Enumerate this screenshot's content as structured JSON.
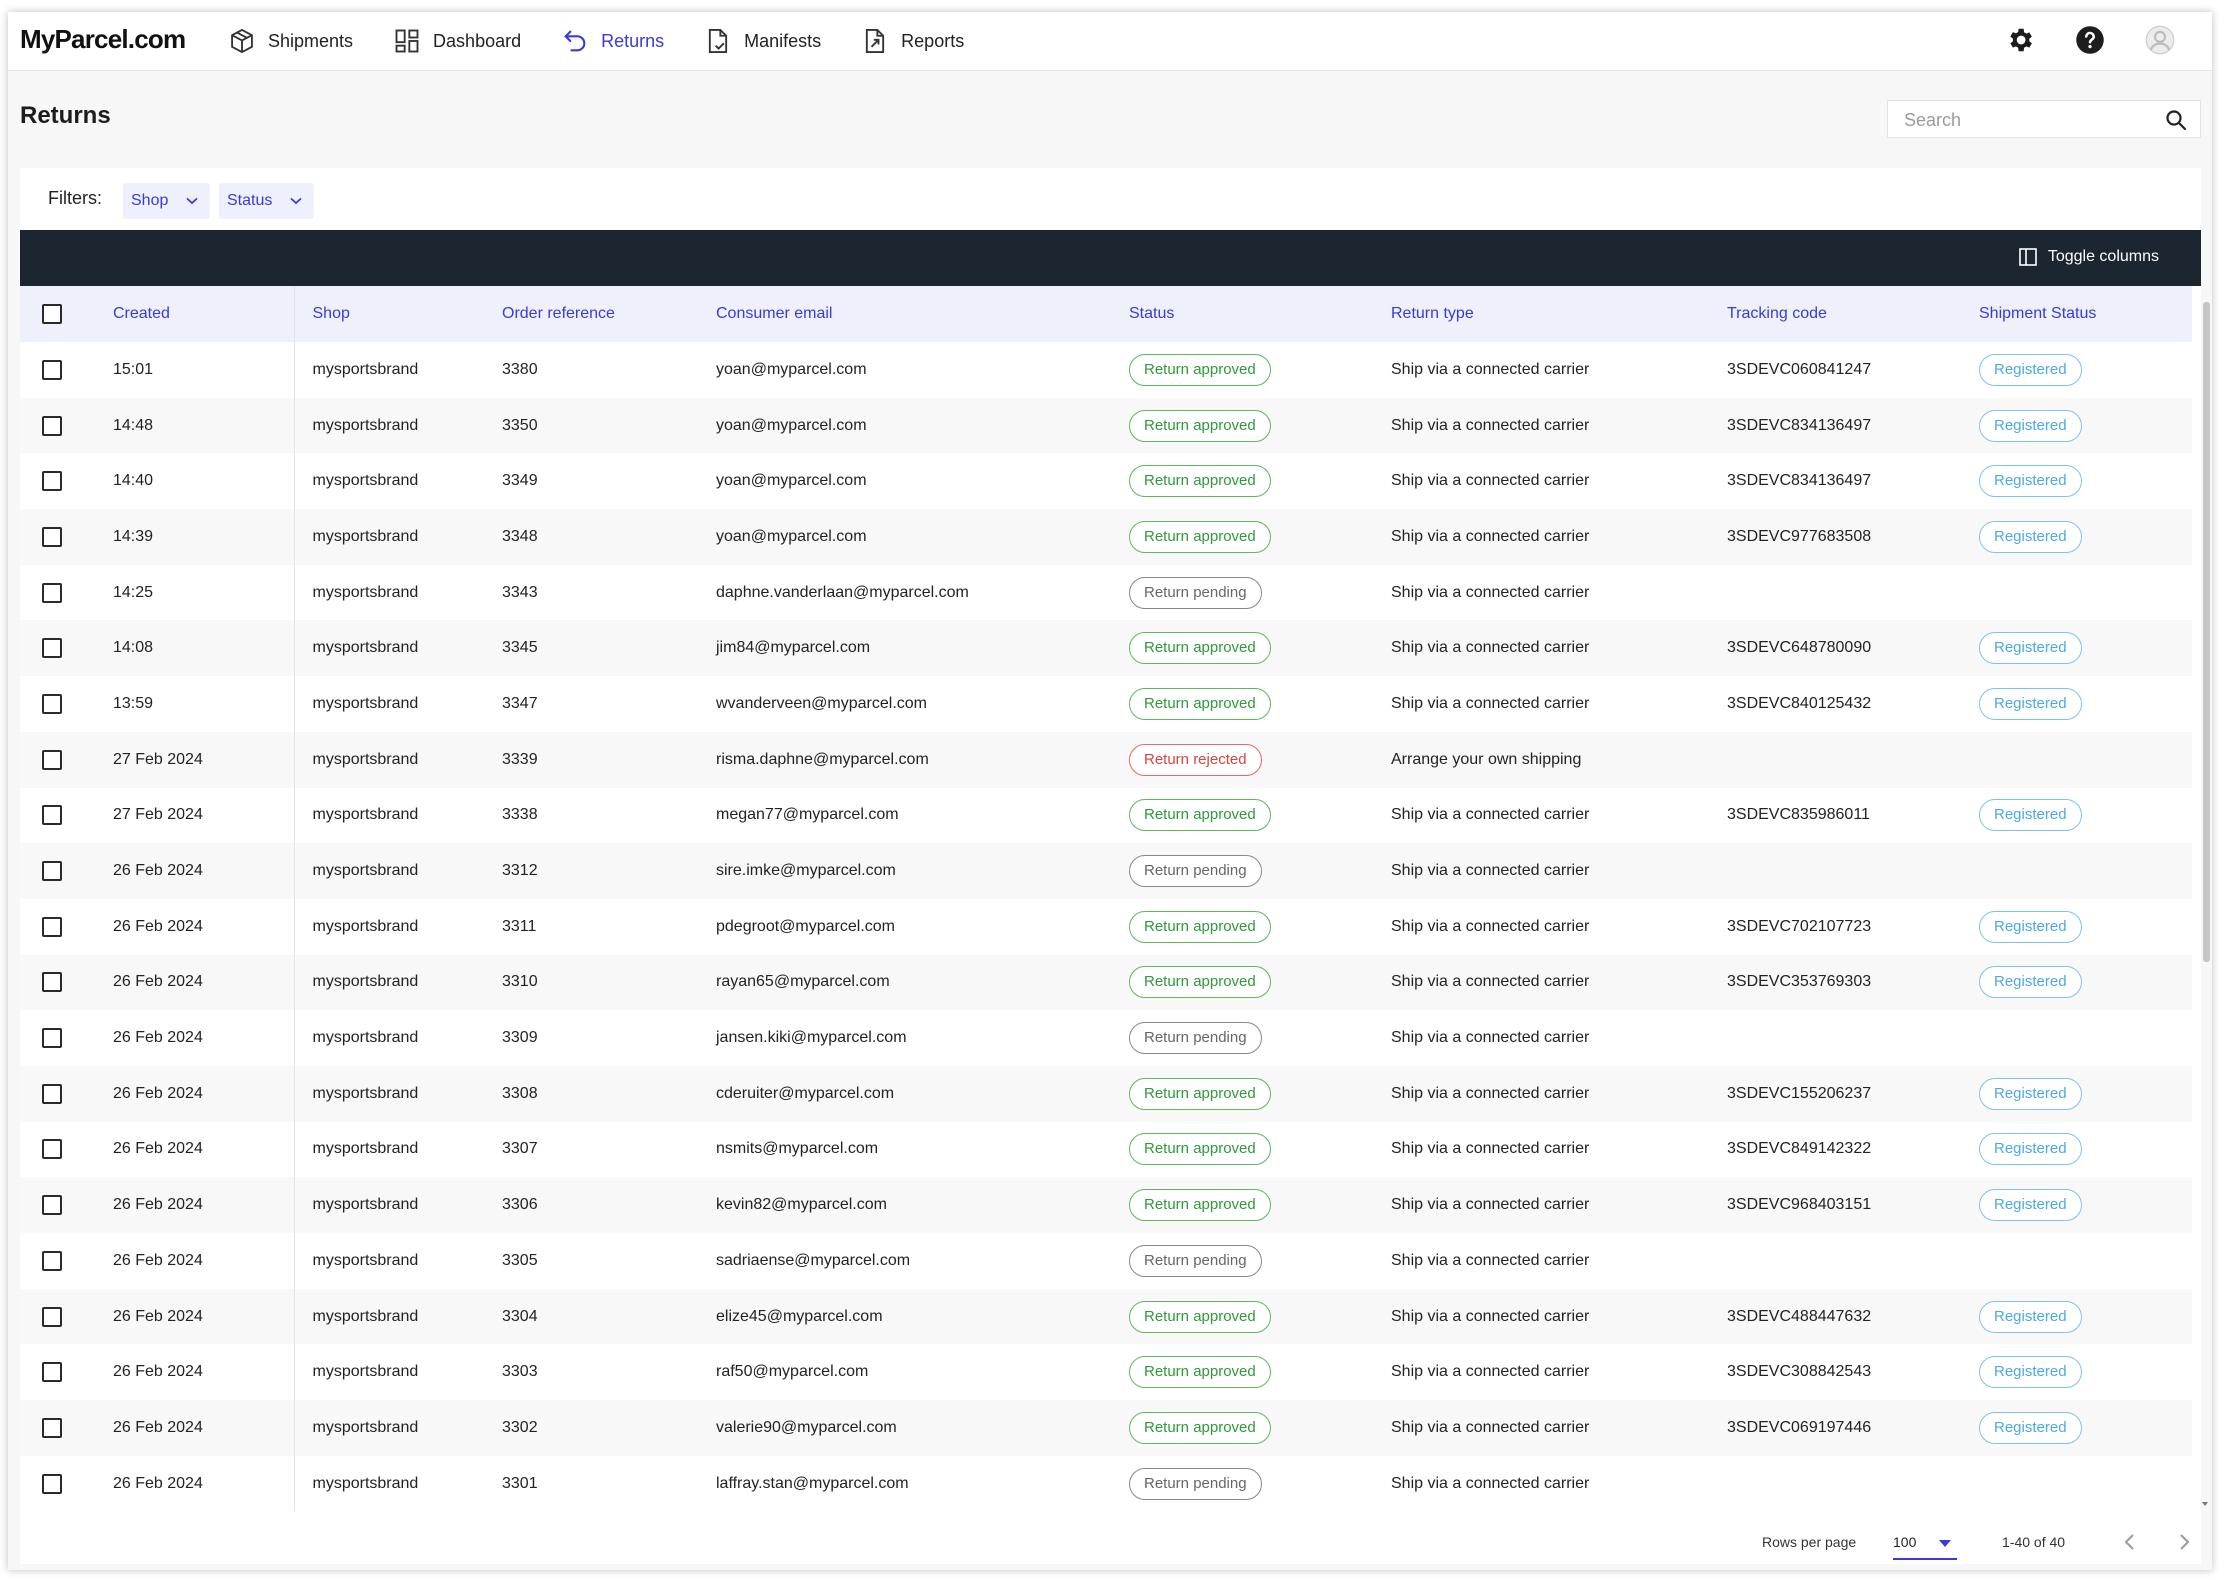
{
  "app": {
    "logo": "MyParcel.com"
  },
  "nav": [
    {
      "label": "Shipments",
      "icon": "box-icon",
      "active": false
    },
    {
      "label": "Dashboard",
      "icon": "dashboard-icon",
      "active": false
    },
    {
      "label": "Returns",
      "icon": "return-arrow-icon",
      "active": true
    },
    {
      "label": "Manifests",
      "icon": "document-check-icon",
      "active": false
    },
    {
      "label": "Reports",
      "icon": "report-icon",
      "active": false
    }
  ],
  "page": {
    "title": "Returns"
  },
  "search": {
    "placeholder": "Search"
  },
  "filters": {
    "label": "Filters:",
    "shop": "Shop",
    "status": "Status"
  },
  "toolbar": {
    "toggle_columns": "Toggle columns"
  },
  "table": {
    "columns": [
      "Created",
      "Shop",
      "Order reference",
      "Consumer email",
      "Status",
      "Return type",
      "Tracking code",
      "Shipment Status"
    ],
    "rows": [
      {
        "created": "15:01",
        "shop": "mysportsbrand",
        "order": "3380",
        "email": "yoan@myparcel.com",
        "status": "Return approved",
        "return_type": "Ship via a connected carrier",
        "tracking": "3SDEVC060841247",
        "shipment_status": "Registered"
      },
      {
        "created": "14:48",
        "shop": "mysportsbrand",
        "order": "3350",
        "email": "yoan@myparcel.com",
        "status": "Return approved",
        "return_type": "Ship via a connected carrier",
        "tracking": "3SDEVC834136497",
        "shipment_status": "Registered"
      },
      {
        "created": "14:40",
        "shop": "mysportsbrand",
        "order": "3349",
        "email": "yoan@myparcel.com",
        "status": "Return approved",
        "return_type": "Ship via a connected carrier",
        "tracking": "3SDEVC834136497",
        "shipment_status": "Registered"
      },
      {
        "created": "14:39",
        "shop": "mysportsbrand",
        "order": "3348",
        "email": "yoan@myparcel.com",
        "status": "Return approved",
        "return_type": "Ship via a connected carrier",
        "tracking": "3SDEVC977683508",
        "shipment_status": "Registered"
      },
      {
        "created": "14:25",
        "shop": "mysportsbrand",
        "order": "3343",
        "email": "daphne.vanderlaan@myparcel.com",
        "status": "Return pending",
        "return_type": "Ship via a connected carrier",
        "tracking": "",
        "shipment_status": ""
      },
      {
        "created": "14:08",
        "shop": "mysportsbrand",
        "order": "3345",
        "email": "jim84@myparcel.com",
        "status": "Return approved",
        "return_type": "Ship via a connected carrier",
        "tracking": "3SDEVC648780090",
        "shipment_status": "Registered"
      },
      {
        "created": "13:59",
        "shop": "mysportsbrand",
        "order": "3347",
        "email": "wvanderveen@myparcel.com",
        "status": "Return approved",
        "return_type": "Ship via a connected carrier",
        "tracking": "3SDEVC840125432",
        "shipment_status": "Registered"
      },
      {
        "created": "27 Feb 2024",
        "shop": "mysportsbrand",
        "order": "3339",
        "email": "risma.daphne@myparcel.com",
        "status": "Return rejected",
        "return_type": "Arrange your own shipping",
        "tracking": "",
        "shipment_status": ""
      },
      {
        "created": "27 Feb 2024",
        "shop": "mysportsbrand",
        "order": "3338",
        "email": "megan77@myparcel.com",
        "status": "Return approved",
        "return_type": "Ship via a connected carrier",
        "tracking": "3SDEVC835986011",
        "shipment_status": "Registered"
      },
      {
        "created": "26 Feb 2024",
        "shop": "mysportsbrand",
        "order": "3312",
        "email": "sire.imke@myparcel.com",
        "status": "Return pending",
        "return_type": "Ship via a connected carrier",
        "tracking": "",
        "shipment_status": ""
      },
      {
        "created": "26 Feb 2024",
        "shop": "mysportsbrand",
        "order": "3311",
        "email": "pdegroot@myparcel.com",
        "status": "Return approved",
        "return_type": "Ship via a connected carrier",
        "tracking": "3SDEVC702107723",
        "shipment_status": "Registered"
      },
      {
        "created": "26 Feb 2024",
        "shop": "mysportsbrand",
        "order": "3310",
        "email": "rayan65@myparcel.com",
        "status": "Return approved",
        "return_type": "Ship via a connected carrier",
        "tracking": "3SDEVC353769303",
        "shipment_status": "Registered"
      },
      {
        "created": "26 Feb 2024",
        "shop": "mysportsbrand",
        "order": "3309",
        "email": "jansen.kiki@myparcel.com",
        "status": "Return pending",
        "return_type": "Ship via a connected carrier",
        "tracking": "",
        "shipment_status": ""
      },
      {
        "created": "26 Feb 2024",
        "shop": "mysportsbrand",
        "order": "3308",
        "email": "cderuiter@myparcel.com",
        "status": "Return approved",
        "return_type": "Ship via a connected carrier",
        "tracking": "3SDEVC155206237",
        "shipment_status": "Registered"
      },
      {
        "created": "26 Feb 2024",
        "shop": "mysportsbrand",
        "order": "3307",
        "email": "nsmits@myparcel.com",
        "status": "Return approved",
        "return_type": "Ship via a connected carrier",
        "tracking": "3SDEVC849142322",
        "shipment_status": "Registered"
      },
      {
        "created": "26 Feb 2024",
        "shop": "mysportsbrand",
        "order": "3306",
        "email": "kevin82@myparcel.com",
        "status": "Return approved",
        "return_type": "Ship via a connected carrier",
        "tracking": "3SDEVC968403151",
        "shipment_status": "Registered"
      },
      {
        "created": "26 Feb 2024",
        "shop": "mysportsbrand",
        "order": "3305",
        "email": "sadriaense@myparcel.com",
        "status": "Return pending",
        "return_type": "Ship via a connected carrier",
        "tracking": "",
        "shipment_status": ""
      },
      {
        "created": "26 Feb 2024",
        "shop": "mysportsbrand",
        "order": "3304",
        "email": "elize45@myparcel.com",
        "status": "Return approved",
        "return_type": "Ship via a connected carrier",
        "tracking": "3SDEVC488447632",
        "shipment_status": "Registered"
      },
      {
        "created": "26 Feb 2024",
        "shop": "mysportsbrand",
        "order": "3303",
        "email": "raf50@myparcel.com",
        "status": "Return approved",
        "return_type": "Ship via a connected carrier",
        "tracking": "3SDEVC308842543",
        "shipment_status": "Registered"
      },
      {
        "created": "26 Feb 2024",
        "shop": "mysportsbrand",
        "order": "3302",
        "email": "valerie90@myparcel.com",
        "status": "Return approved",
        "return_type": "Ship via a connected carrier",
        "tracking": "3SDEVC069197446",
        "shipment_status": "Registered"
      },
      {
        "created": "26 Feb 2024",
        "shop": "mysportsbrand",
        "order": "3301",
        "email": "laffray.stan@myparcel.com",
        "status": "Return pending",
        "return_type": "Ship via a connected carrier",
        "tracking": "",
        "shipment_status": ""
      }
    ]
  },
  "pagination": {
    "rows_per_page_label": "Rows per page",
    "rows_per_page": "100",
    "range": "1-40 of 40"
  },
  "colors": {
    "accent": "#3a3ad6",
    "dark_bar": "#1b2631",
    "approved": "#2e9a3a",
    "rejected": "#d9443f",
    "registered": "#4aa9e8"
  }
}
